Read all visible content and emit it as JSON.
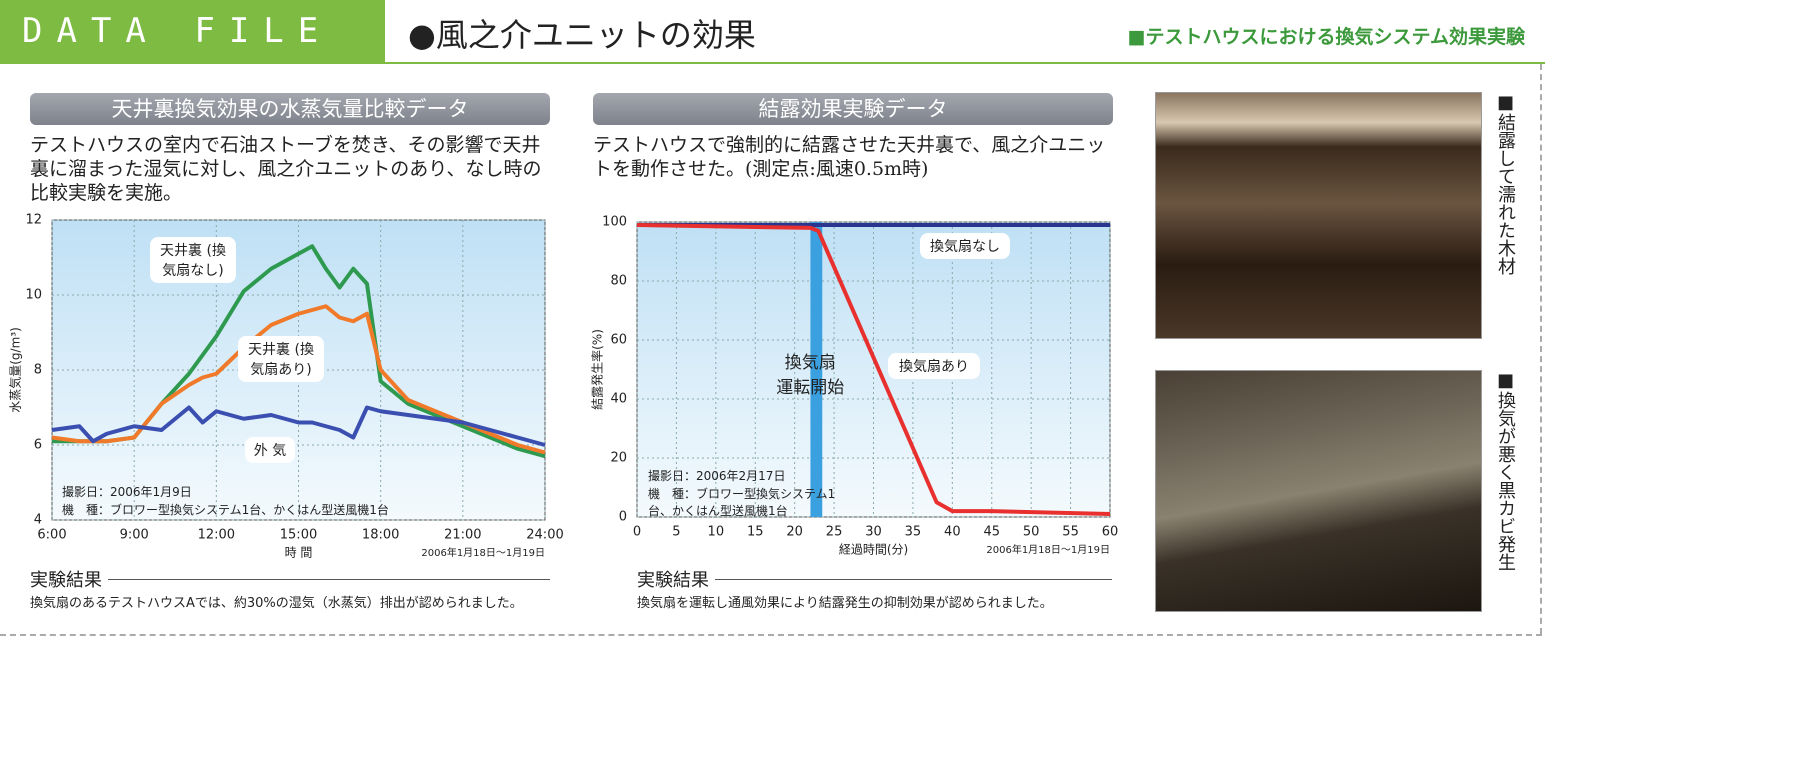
{
  "header": {
    "badge": "DATA FILE",
    "title": "●風之介ユニットの効果",
    "subtitle": "■テストハウスにおける換気システム効果実験"
  },
  "sections": [
    {
      "heading": "天井裏換気効果の水蒸気量比較データ",
      "description": "テストハウスの室内で石油ストーブを焚き、その影響で天井裏に溜まった湿気に対し、風之介ユニットのあり、なし時の比較実験を実施。",
      "result_heading": "実験結果",
      "result_text": "換気扇のあるテストハウスAでは、約30%の湿気（水蒸気）排出が認められました。"
    },
    {
      "heading": "結露効果実験データ",
      "description": "テストハウスで強制的に結露させた天井裏で、風之介ユニットを動作させた。(測定点:風速0.5m時)",
      "result_heading": "実験結果",
      "result_text": "換気扇を運転し通風効果により結露発生の抑制効果が認められました。"
    }
  ],
  "photos": [
    {
      "caption": "■結露して濡れた木材"
    },
    {
      "caption": "■換気が悪く黒カビ発生"
    }
  ],
  "chart_data": [
    {
      "type": "line",
      "ylabel": "水蒸気量(g/m³)",
      "xlabel": "時 間",
      "date_note": "2006年1月18日～1月19日",
      "annotations": [
        "撮影日：2006年1月9日",
        "機　種：ブロワー型換気システム1台、かくはん型送風機1台"
      ],
      "x": [
        6,
        7,
        7.5,
        8,
        9,
        10,
        11,
        11.5,
        12,
        13,
        14,
        15,
        15.5,
        16,
        16.5,
        17,
        17.5,
        18,
        19,
        20,
        21,
        22,
        23,
        24
      ],
      "series": [
        {
          "name": "天井裏 (換気扇なし)",
          "color": "#2e9a4f",
          "values": [
            6.1,
            6.1,
            6.1,
            6.1,
            6.2,
            7.1,
            7.9,
            8.4,
            8.9,
            10.1,
            10.7,
            11.1,
            11.3,
            10.7,
            10.2,
            10.7,
            10.3,
            7.7,
            7.1,
            6.8,
            6.5,
            6.2,
            5.9,
            5.7
          ]
        },
        {
          "name": "天井裏 (換気扇あり)",
          "color": "#f07a2a",
          "values": [
            6.2,
            6.1,
            6.1,
            6.1,
            6.2,
            7.1,
            7.6,
            7.8,
            7.9,
            8.6,
            9.2,
            9.5,
            9.6,
            9.7,
            9.4,
            9.3,
            9.5,
            8.0,
            7.2,
            6.9,
            6.6,
            6.3,
            6.0,
            5.8
          ]
        },
        {
          "name": "外 気",
          "color": "#3a4fb0",
          "values": [
            6.4,
            6.5,
            6.1,
            6.3,
            6.5,
            6.4,
            7.0,
            6.6,
            6.9,
            6.7,
            6.8,
            6.6,
            6.6,
            6.5,
            6.4,
            6.2,
            7.0,
            6.9,
            6.8,
            6.7,
            6.6,
            6.4,
            6.2,
            6.0
          ]
        }
      ],
      "xlim": [
        6,
        24
      ],
      "xticks": [
        {
          "value": 6,
          "label": "6:00"
        },
        {
          "value": 9,
          "label": "9:00"
        },
        {
          "value": 12,
          "label": "12:00"
        },
        {
          "value": 15,
          "label": "15:00"
        },
        {
          "value": 18,
          "label": "18:00"
        },
        {
          "value": 21,
          "label": "21:00"
        },
        {
          "value": 24,
          "label": "24:00"
        }
      ],
      "ylim": [
        4,
        12
      ],
      "yticks": [
        4,
        6,
        8,
        10,
        12
      ],
      "grid": true
    },
    {
      "type": "line",
      "ylabel": "結露発生率(%)",
      "xlabel": "経過時間(分)",
      "date_note": "2006年1月18日～1月19日",
      "annotations": [
        "撮影日：2006年2月17日",
        "機　種：ブロワー型換気システム1台、かくはん型送風機1台"
      ],
      "highlight": {
        "x": [
          22,
          23.5
        ],
        "label": "換気扇 運転開始",
        "color": "#3ba0e0"
      },
      "x": [
        0,
        22,
        23,
        38,
        40,
        45,
        60
      ],
      "series": [
        {
          "name": "換気扇なし",
          "color": "#2a3590",
          "values": [
            99,
            99,
            99,
            99,
            99,
            99,
            99
          ]
        },
        {
          "name": "換気扇あり",
          "color": "#e8302e",
          "values": [
            99,
            98,
            97,
            5,
            2,
            2,
            1
          ]
        }
      ],
      "xlim": [
        0,
        60
      ],
      "xticks": [
        0,
        5,
        10,
        15,
        20,
        25,
        30,
        35,
        40,
        45,
        50,
        55,
        60
      ],
      "ylim": [
        0,
        100
      ],
      "yticks": [
        0,
        20,
        40,
        60,
        80,
        100
      ],
      "grid": true
    }
  ]
}
